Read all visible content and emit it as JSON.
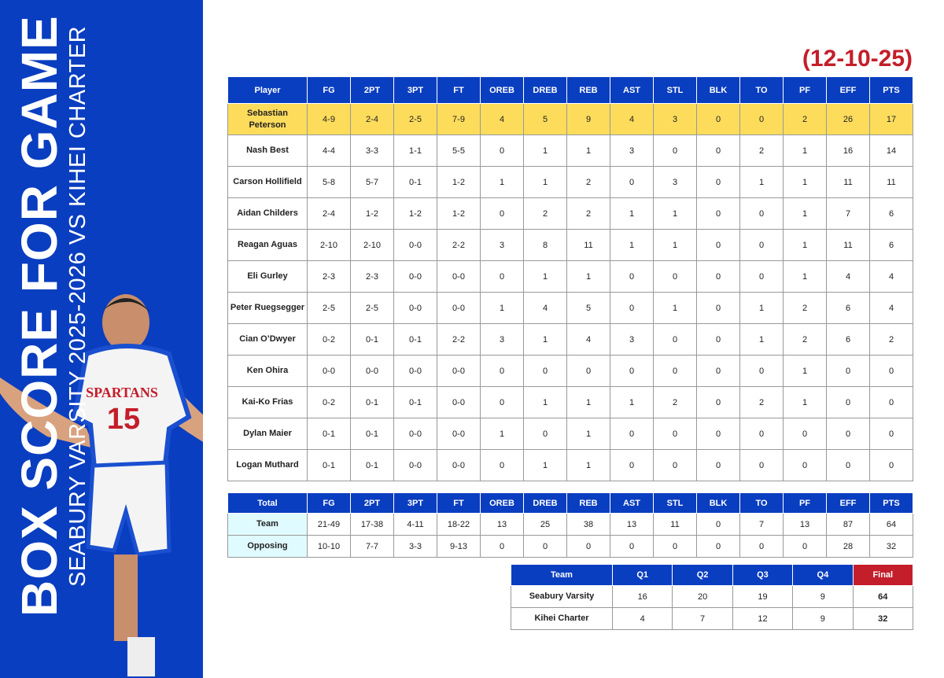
{
  "title": "BOX SCORE FOR GAME",
  "subtitle": "SEABURY VARSITY 2025-2026 VS KIHEI CHARTER",
  "date": "(12-10-25)",
  "photo": {
    "jersey_text": "SPARTANS",
    "jersey_number": "15"
  },
  "colors": {
    "primary": "#0a3ec0",
    "highlight": "#fddc5c",
    "final": "#c41e2a",
    "team_cell": "#e0fbff",
    "date": "#c41e2a"
  },
  "box": {
    "columns": [
      "Player",
      "FG",
      "2PT",
      "3PT",
      "FT",
      "OREB",
      "DREB",
      "REB",
      "AST",
      "STL",
      "BLK",
      "TO",
      "PF",
      "EFF",
      "PTS"
    ],
    "rows": [
      [
        "Sebastian Peterson",
        "4-9",
        "2-4",
        "2-5",
        "7-9",
        "4",
        "5",
        "9",
        "4",
        "3",
        "0",
        "0",
        "2",
        "26",
        "17"
      ],
      [
        "Nash Best",
        "4-4",
        "3-3",
        "1-1",
        "5-5",
        "0",
        "1",
        "1",
        "3",
        "0",
        "0",
        "2",
        "1",
        "16",
        "14"
      ],
      [
        "Carson Hollifield",
        "5-8",
        "5-7",
        "0-1",
        "1-2",
        "1",
        "1",
        "2",
        "0",
        "3",
        "0",
        "1",
        "1",
        "11",
        "11"
      ],
      [
        "Aidan Childers",
        "2-4",
        "1-2",
        "1-2",
        "1-2",
        "0",
        "2",
        "2",
        "1",
        "1",
        "0",
        "0",
        "1",
        "7",
        "6"
      ],
      [
        "Reagan Aguas",
        "2-10",
        "2-10",
        "0-0",
        "2-2",
        "3",
        "8",
        "11",
        "1",
        "1",
        "0",
        "0",
        "1",
        "11",
        "6"
      ],
      [
        "Eli Gurley",
        "2-3",
        "2-3",
        "0-0",
        "0-0",
        "0",
        "1",
        "1",
        "0",
        "0",
        "0",
        "0",
        "1",
        "4",
        "4"
      ],
      [
        "Peter Ruegsegger",
        "2-5",
        "2-5",
        "0-0",
        "0-0",
        "1",
        "4",
        "5",
        "0",
        "1",
        "0",
        "1",
        "2",
        "6",
        "4"
      ],
      [
        "Cian O’Dwyer",
        "0-2",
        "0-1",
        "0-1",
        "2-2",
        "3",
        "1",
        "4",
        "3",
        "0",
        "0",
        "1",
        "2",
        "6",
        "2"
      ],
      [
        "Ken Ohira",
        "0-0",
        "0-0",
        "0-0",
        "0-0",
        "0",
        "0",
        "0",
        "0",
        "0",
        "0",
        "0",
        "1",
        "0",
        "0"
      ],
      [
        "Kai-Ko Frias",
        "0-2",
        "0-1",
        "0-1",
        "0-0",
        "0",
        "1",
        "1",
        "1",
        "2",
        "0",
        "2",
        "1",
        "0",
        "0"
      ],
      [
        "Dylan Maier",
        "0-1",
        "0-1",
        "0-0",
        "0-0",
        "1",
        "0",
        "1",
        "0",
        "0",
        "0",
        "0",
        "0",
        "0",
        "0"
      ],
      [
        "Logan Muthard",
        "0-1",
        "0-1",
        "0-0",
        "0-0",
        "0",
        "1",
        "1",
        "0",
        "0",
        "0",
        "0",
        "0",
        "0",
        "0"
      ]
    ]
  },
  "totals": {
    "columns": [
      "Total",
      "FG",
      "2PT",
      "3PT",
      "FT",
      "OREB",
      "DREB",
      "REB",
      "AST",
      "STL",
      "BLK",
      "TO",
      "PF",
      "EFF",
      "PTS"
    ],
    "rows": [
      [
        "Team",
        "21-49",
        "17-38",
        "4-11",
        "18-22",
        "13",
        "25",
        "38",
        "13",
        "11",
        "0",
        "7",
        "13",
        "87",
        "64"
      ],
      [
        "Opposing",
        "10-10",
        "7-7",
        "3-3",
        "9-13",
        "0",
        "0",
        "0",
        "0",
        "0",
        "0",
        "0",
        "0",
        "28",
        "32"
      ]
    ]
  },
  "quarters": {
    "columns": [
      "Team",
      "Q1",
      "Q2",
      "Q3",
      "Q4",
      "Final"
    ],
    "rows": [
      [
        "Seabury Varsity",
        "16",
        "20",
        "19",
        "9",
        "64"
      ],
      [
        "Kihei Charter",
        "4",
        "7",
        "12",
        "9",
        "32"
      ]
    ]
  }
}
